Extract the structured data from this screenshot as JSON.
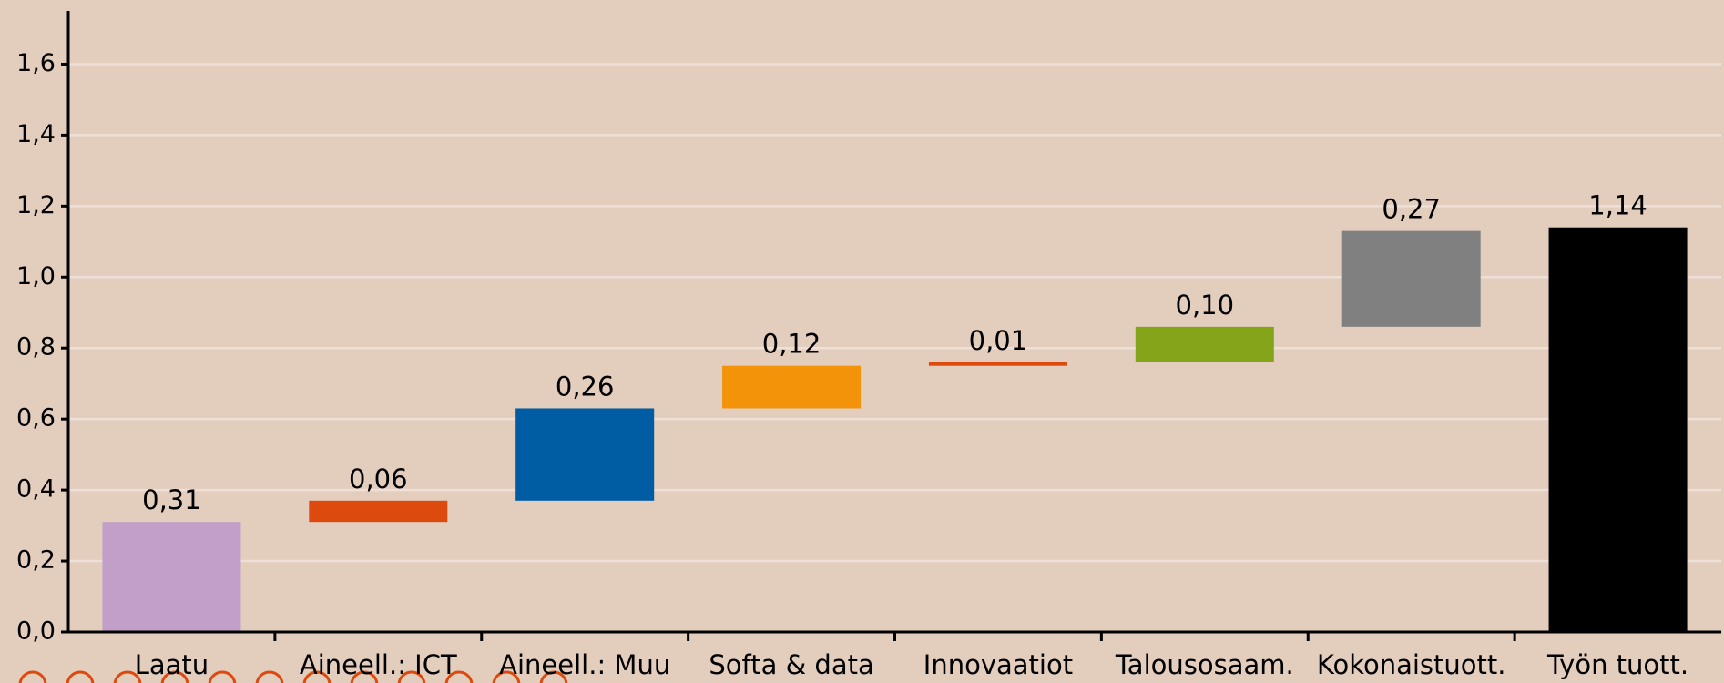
{
  "chart_data": {
    "type": "waterfall",
    "categories": [
      "Laatu",
      "Aineell.: ICT",
      "Aineell.: Muu",
      "Softa & data",
      "Innovaatiot",
      "Talousosaam.",
      "Kokonaistuott.",
      "Työn tuott."
    ],
    "values": [
      0.31,
      0.06,
      0.26,
      0.12,
      0.01,
      0.1,
      0.27,
      1.14
    ],
    "value_labels": [
      "0,31",
      "0,06",
      "0,26",
      "0,12",
      "0,01",
      "0,10",
      "0,27",
      "1,14"
    ],
    "measure": [
      "relative",
      "relative",
      "relative",
      "relative",
      "relative",
      "relative",
      "relative",
      "total"
    ],
    "colors": [
      "#c29fc9",
      "#dc4a0e",
      "#005ca3",
      "#f2930a",
      "#dc4a0e",
      "#84a51a",
      "#808080",
      "#000000"
    ],
    "ylim": [
      0,
      1.75
    ],
    "yticks": [
      {
        "value": 0,
        "label": "0,0"
      },
      {
        "value": 0.2,
        "label": "0,2"
      },
      {
        "value": 0.4,
        "label": "0,4"
      },
      {
        "value": 0.6,
        "label": "0,6"
      },
      {
        "value": 0.8,
        "label": "0,8"
      },
      {
        "value": 1.0,
        "label": "1,0"
      },
      {
        "value": 1.2,
        "label": "1,2"
      },
      {
        "value": 1.4,
        "label": "1,4"
      },
      {
        "value": 1.6,
        "label": "1,6"
      }
    ],
    "grid": true
  }
}
